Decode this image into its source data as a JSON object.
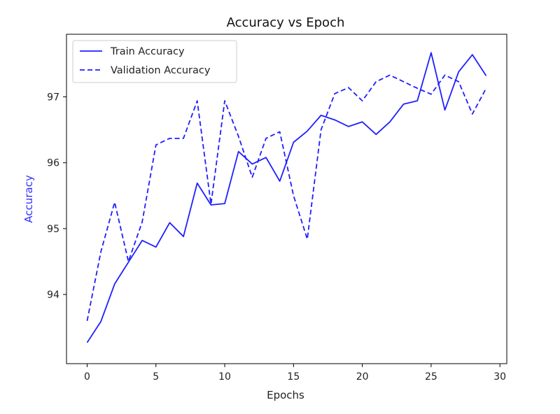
{
  "chart_data": {
    "type": "line",
    "title": "Accuracy vs Epoch",
    "xlabel": "Epochs",
    "ylabel": "Accuracy",
    "xlim": [
      -1.5,
      30.5
    ],
    "ylim": [
      92.95,
      97.95
    ],
    "xticks": [
      0,
      5,
      10,
      15,
      20,
      25,
      30
    ],
    "yticks": [
      94,
      95,
      96,
      97
    ],
    "grid": false,
    "legend_position": "top-left",
    "colors": {
      "line": "#1f1fff",
      "ylabel": "#3333ff",
      "axis": "#000000"
    },
    "x": [
      0,
      1,
      2,
      3,
      4,
      5,
      6,
      7,
      8,
      9,
      10,
      11,
      12,
      13,
      14,
      15,
      16,
      17,
      18,
      19,
      20,
      21,
      22,
      23,
      24,
      25,
      26,
      27,
      28,
      29
    ],
    "series": [
      {
        "name": "Train Accuracy",
        "style": "solid",
        "values": [
          93.27,
          93.59,
          94.16,
          94.49,
          94.82,
          94.72,
          95.09,
          94.88,
          95.69,
          95.36,
          95.38,
          96.17,
          95.98,
          96.08,
          95.72,
          96.31,
          96.48,
          96.72,
          96.65,
          96.55,
          96.62,
          96.43,
          96.62,
          96.89,
          96.94,
          97.67,
          96.8,
          97.38,
          97.64,
          97.32
        ]
      },
      {
        "name": "Validation Accuracy",
        "style": "dashed",
        "values": [
          93.6,
          94.65,
          95.4,
          94.5,
          95.1,
          96.27,
          96.37,
          96.37,
          96.94,
          95.37,
          96.94,
          96.4,
          95.78,
          96.37,
          96.47,
          95.5,
          94.84,
          96.5,
          97.05,
          97.14,
          96.94,
          97.23,
          97.33,
          97.23,
          97.13,
          97.04,
          97.33,
          97.23,
          96.74,
          97.13
        ]
      }
    ]
  }
}
